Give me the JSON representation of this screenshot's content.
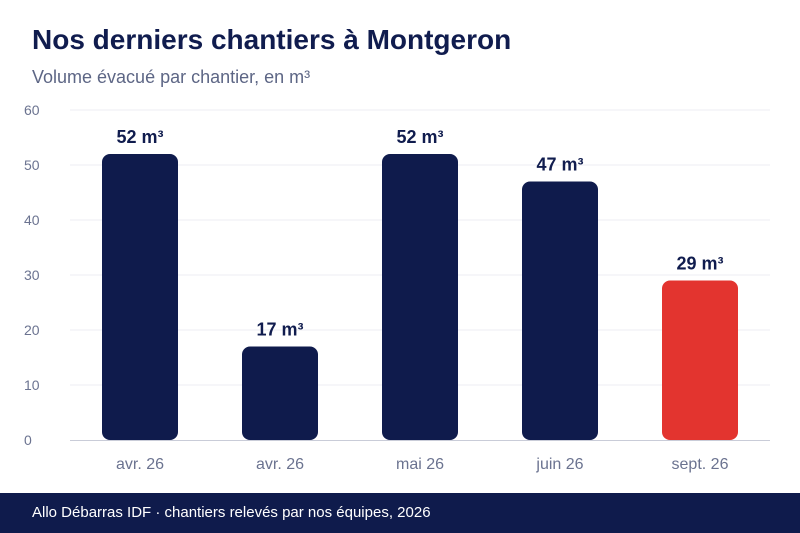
{
  "header": {
    "title": "Nos derniers chantiers à Montgeron",
    "subtitle": "Volume évacué par chantier, en m³"
  },
  "chart_data": {
    "type": "bar",
    "title": "Nos derniers chantiers à Montgeron",
    "subtitle": "Volume évacué par chantier, en m³",
    "categories": [
      "avr. 26",
      "avr. 26",
      "mai 26",
      "juin 26",
      "sept. 26"
    ],
    "values": [
      52,
      17,
      52,
      47,
      29
    ],
    "value_labels": [
      "52 m³",
      "17 m³",
      "52 m³",
      "47 m³",
      "29 m³"
    ],
    "highlight_index": 4,
    "y_ticks": [
      0,
      10,
      20,
      30,
      40,
      50,
      60
    ],
    "ylim": [
      0,
      60
    ],
    "xlabel": "",
    "ylabel": "",
    "grid": true,
    "legend": "none",
    "colors": {
      "bar": "#0f1b4c",
      "highlight": "#e3342f",
      "label": "#101c4e",
      "tick": "#6b7390",
      "grid": "#eceef3",
      "axis": "#c9ccd8"
    }
  },
  "footer": {
    "text": "Allo Débarras IDF · chantiers relevés par nos équipes, 2026"
  }
}
